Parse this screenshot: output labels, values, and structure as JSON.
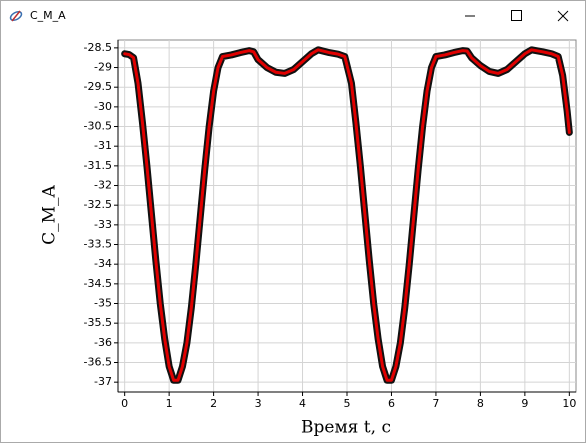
{
  "window_title": "C_M_A",
  "chart_data": {
    "type": "line",
    "xlabel": "Время t, с",
    "ylabel": "C_M_A",
    "x": [
      0,
      0.1,
      0.2,
      0.3,
      0.4,
      0.5,
      0.6,
      0.7,
      0.8,
      0.9,
      1.0,
      1.1,
      1.2,
      1.3,
      1.4,
      1.5,
      1.6,
      1.7,
      1.8,
      1.9,
      2.0,
      2.1,
      2.2,
      2.4,
      2.6,
      2.8,
      2.9,
      3.0,
      3.2,
      3.4,
      3.6,
      3.8,
      4.0,
      4.2,
      4.35,
      4.6,
      4.8,
      4.95,
      5.1,
      5.2,
      5.3,
      5.4,
      5.5,
      5.6,
      5.7,
      5.8,
      5.9,
      6.0,
      6.1,
      6.2,
      6.3,
      6.4,
      6.5,
      6.6,
      6.7,
      6.8,
      6.9,
      7.0,
      7.2,
      7.4,
      7.6,
      7.7,
      7.8,
      8.0,
      8.2,
      8.4,
      8.6,
      8.8,
      9.0,
      9.15,
      9.4,
      9.6,
      9.75,
      9.85,
      9.95,
      10.0
    ],
    "series": [
      {
        "color": "#e00000",
        "values": [
          -28.65,
          -28.67,
          -28.75,
          -29.4,
          -30.4,
          -31.5,
          -32.7,
          -33.9,
          -35.0,
          -35.9,
          -36.6,
          -36.95,
          -36.95,
          -36.6,
          -36.0,
          -35.1,
          -34.0,
          -32.8,
          -31.6,
          -30.5,
          -29.6,
          -29.0,
          -28.72,
          -28.68,
          -28.62,
          -28.57,
          -28.6,
          -28.8,
          -29.0,
          -29.12,
          -29.15,
          -29.05,
          -28.85,
          -28.65,
          -28.55,
          -28.62,
          -28.66,
          -28.72,
          -29.4,
          -30.4,
          -31.5,
          -32.7,
          -33.9,
          -35.0,
          -35.9,
          -36.6,
          -36.95,
          -36.95,
          -36.6,
          -36.0,
          -35.1,
          -34.0,
          -32.8,
          -31.6,
          -30.5,
          -29.6,
          -29.0,
          -28.72,
          -28.68,
          -28.62,
          -28.57,
          -28.58,
          -28.75,
          -28.95,
          -29.1,
          -29.15,
          -29.05,
          -28.85,
          -28.65,
          -28.55,
          -28.6,
          -28.65,
          -28.72,
          -29.2,
          -30.1,
          -30.65
        ]
      }
    ],
    "xlim": [
      -0.15,
      10.15
    ],
    "ylim": [
      -37.25,
      -28.3
    ],
    "xticks": [
      0,
      1,
      2,
      3,
      4,
      5,
      6,
      7,
      8,
      9,
      10
    ],
    "yticks": [
      -37,
      -36.5,
      -36,
      -35.5,
      -35,
      -34.5,
      -34,
      -33.5,
      -33,
      -32.5,
      -32,
      -31.5,
      -31,
      -30.5,
      -30,
      -29.5,
      -29,
      -28.5
    ],
    "grid": true
  }
}
